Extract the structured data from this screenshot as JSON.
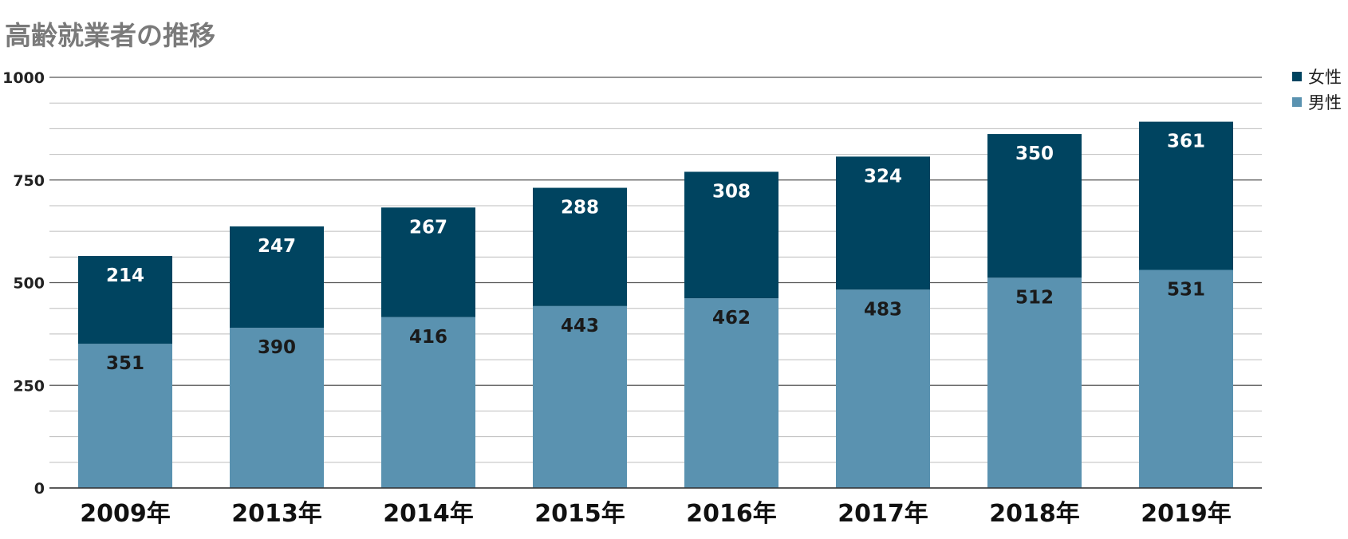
{
  "chart_data": {
    "type": "bar",
    "stacked": true,
    "title": "高齢就業者の推移",
    "xlabel": "",
    "ylabel": "",
    "categories": [
      "2009年",
      "2013年",
      "2014年",
      "2015年",
      "2016年",
      "2017年",
      "2018年",
      "2019年"
    ],
    "series": [
      {
        "name": "男性",
        "color": "#5a92b0",
        "label_color": "#1a1a1a",
        "values": [
          351,
          390,
          416,
          443,
          462,
          483,
          512,
          531
        ]
      },
      {
        "name": "女性",
        "color": "#004460",
        "label_color": "#ffffff",
        "values": [
          214,
          247,
          267,
          288,
          308,
          324,
          350,
          361
        ]
      }
    ],
    "ylim": [
      0,
      1000
    ],
    "yticks": [
      0,
      250,
      500,
      750,
      1000
    ],
    "grid": true,
    "legend_position": "top-right",
    "legend_order": [
      "女性",
      "男性"
    ]
  }
}
